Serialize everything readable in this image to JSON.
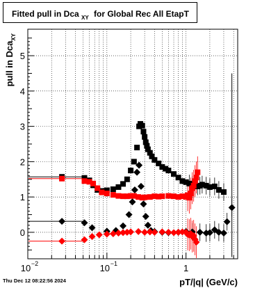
{
  "title": {
    "main": "Fitted pull in Dca",
    "sub": "XY",
    "rest": "for Global Rec All EtapT"
  },
  "footer": {
    "datetime": "Thu Dec 12 08:22:56 2024"
  },
  "chart_data": {
    "type": "scatter",
    "title": "Fitted pull in Dca_XY for Global Rec All EtapT",
    "xlabel": "pT/|q| (GeV/c)",
    "ylabel": "pull in Dca_XY",
    "ylabel_sub": "XY",
    "x_scale": "log",
    "xlim": [
      0.01,
      4.5
    ],
    "ylim": [
      -0.75,
      5.75
    ],
    "grid": true,
    "x_ticks": [
      {
        "v": 0.01,
        "label": "10",
        "exp": "−2"
      },
      {
        "v": 0.1,
        "label": "10",
        "exp": "−1"
      },
      {
        "v": 1,
        "label": "1",
        "exp": ""
      }
    ],
    "y_ticks": [
      0,
      1,
      2,
      3,
      4,
      5
    ],
    "series": [
      {
        "color": "#000000",
        "marker": "square",
        "points": [
          [
            0.027,
            1.57
          ],
          [
            0.052,
            1.54
          ],
          [
            0.06,
            1.47
          ],
          [
            0.067,
            1.33
          ],
          [
            0.076,
            1.2
          ],
          [
            0.086,
            1.17
          ],
          [
            0.1,
            1.19
          ],
          [
            0.12,
            1.22
          ],
          [
            0.14,
            1.28
          ],
          [
            0.16,
            1.37
          ],
          [
            0.18,
            1.5
          ],
          [
            0.2,
            1.75
          ],
          [
            0.22,
            2.0
          ],
          [
            0.24,
            2.4
          ],
          [
            0.255,
            3.0
          ],
          [
            0.265,
            3.07
          ],
          [
            0.28,
            3.02
          ],
          [
            0.29,
            2.85
          ],
          [
            0.3,
            2.7
          ],
          [
            0.31,
            2.55
          ],
          [
            0.32,
            2.45
          ],
          [
            0.33,
            2.35
          ],
          [
            0.35,
            2.25
          ],
          [
            0.37,
            2.15
          ],
          [
            0.4,
            2.05
          ],
          [
            0.45,
            1.95
          ],
          [
            0.5,
            1.85
          ],
          [
            0.55,
            1.8
          ],
          [
            0.6,
            1.75
          ],
          [
            0.7,
            1.65
          ],
          [
            0.8,
            1.55
          ],
          [
            0.9,
            1.45
          ],
          [
            1.0,
            1.42
          ],
          [
            1.1,
            1.38
          ],
          [
            1.2,
            1.34
          ],
          [
            1.3,
            1.3
          ],
          [
            1.4,
            1.3
          ],
          [
            1.5,
            1.32
          ],
          [
            1.6,
            1.35
          ],
          [
            1.8,
            1.32
          ],
          [
            2.0,
            1.28
          ],
          [
            2.3,
            1.3
          ],
          [
            2.6,
            1.2
          ],
          [
            3.0,
            1.14
          ]
        ]
      },
      {
        "color": "#000000",
        "marker": "diamond",
        "points": [
          [
            0.027,
            0.31
          ],
          [
            0.052,
            0.27
          ],
          [
            0.065,
            0.13
          ],
          [
            0.1,
            0.03
          ],
          [
            0.13,
            0.05
          ],
          [
            0.16,
            0.18
          ],
          [
            0.19,
            0.5
          ],
          [
            0.21,
            0.86
          ],
          [
            0.225,
            1.2
          ],
          [
            0.24,
            1.7
          ],
          [
            0.255,
            1.9
          ],
          [
            0.27,
            1.3
          ],
          [
            0.29,
            0.8
          ],
          [
            0.31,
            0.45
          ],
          [
            0.33,
            0.2
          ],
          [
            0.36,
            0.05
          ],
          [
            0.4,
            0.02
          ],
          [
            0.5,
            0.0
          ],
          [
            0.6,
            -0.01
          ],
          [
            0.8,
            0.0
          ],
          [
            1.0,
            0.02
          ],
          [
            1.2,
            0.01
          ],
          [
            1.5,
            0.0
          ],
          [
            1.8,
            -0.02
          ],
          [
            2.0,
            -0.01
          ],
          [
            2.3,
            0.07
          ],
          [
            2.6,
            0.0
          ],
          [
            3.0,
            -0.02
          ],
          [
            3.3,
            0.3
          ],
          [
            3.8,
            0.7
          ]
        ]
      },
      {
        "color": "#ff0000",
        "marker": "square",
        "points": [
          [
            0.027,
            1.52
          ],
          [
            0.052,
            1.45
          ],
          [
            0.06,
            1.43
          ],
          [
            0.067,
            1.38
          ],
          [
            0.076,
            1.25
          ],
          [
            0.086,
            1.13
          ],
          [
            0.1,
            1.1
          ],
          [
            0.12,
            1.06
          ],
          [
            0.14,
            1.03
          ],
          [
            0.16,
            1.02
          ],
          [
            0.18,
            1.02
          ],
          [
            0.2,
            1.03
          ],
          [
            0.22,
            1.03
          ],
          [
            0.25,
            1.0
          ],
          [
            0.28,
            0.98
          ],
          [
            0.3,
            0.99
          ],
          [
            0.35,
            1.0
          ],
          [
            0.4,
            1.02
          ],
          [
            0.45,
            1.01
          ],
          [
            0.5,
            1.02
          ],
          [
            0.6,
            1.03
          ],
          [
            0.7,
            1.02
          ],
          [
            0.8,
            1.0
          ],
          [
            0.9,
            1.02
          ],
          [
            1.0,
            1.0
          ],
          [
            1.05,
            1.05
          ],
          [
            1.1,
            0.98
          ],
          [
            1.15,
            1.1
          ],
          [
            1.2,
            1.25
          ],
          [
            1.25,
            1.32
          ],
          [
            1.3,
            1.45
          ],
          [
            1.35,
            1.55
          ],
          [
            1.4,
            1.7
          ]
        ]
      },
      {
        "color": "#ff0000",
        "marker": "diamond",
        "points": [
          [
            0.027,
            -0.25
          ],
          [
            0.052,
            -0.21
          ],
          [
            0.065,
            -0.12
          ],
          [
            0.08,
            -0.07
          ],
          [
            0.1,
            -0.05
          ],
          [
            0.12,
            -0.04
          ],
          [
            0.14,
            -0.02
          ],
          [
            0.16,
            -0.01
          ],
          [
            0.18,
            0.0
          ],
          [
            0.2,
            0.01
          ],
          [
            0.25,
            0.02
          ],
          [
            0.3,
            0.0
          ],
          [
            0.35,
            0.01
          ],
          [
            0.4,
            0.0
          ],
          [
            0.5,
            0.01
          ],
          [
            0.6,
            0.0
          ],
          [
            0.7,
            -0.01
          ],
          [
            0.8,
            0.0
          ],
          [
            0.9,
            0.01
          ],
          [
            1.0,
            0.0
          ],
          [
            1.05,
            -0.06
          ],
          [
            1.1,
            -0.08
          ],
          [
            1.15,
            -0.04
          ],
          [
            1.2,
            -0.12
          ],
          [
            1.25,
            -0.1
          ],
          [
            1.3,
            -0.2
          ],
          [
            1.35,
            -0.28
          ]
        ]
      }
    ]
  }
}
